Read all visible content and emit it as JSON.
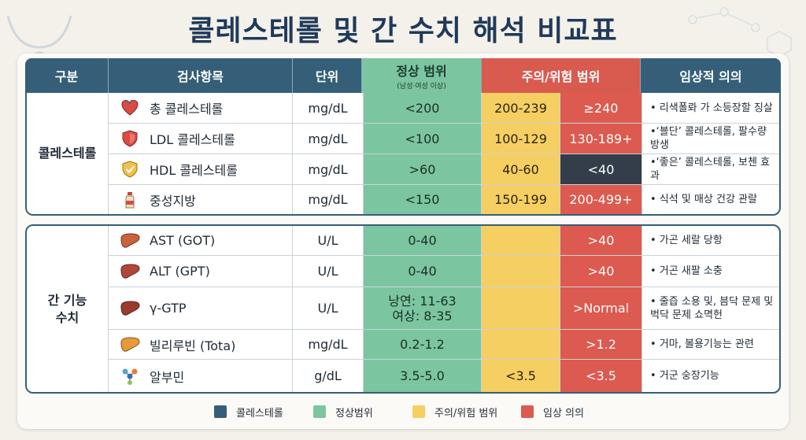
{
  "title": "콜레스테롤 및 간 수치 해석 비교표",
  "header": {
    "category": "구분",
    "item": "검사항목",
    "unit": "단위",
    "normal": "정상 범위",
    "normal_sub": "(남성·여성 이상)",
    "warning": "주의/위험 범위",
    "meaning": "임상적 의의"
  },
  "sections": [
    {
      "group": "콜레스테롤",
      "rows": [
        {
          "icon": "heart-icon",
          "name": "총 콜레스테롤",
          "unit": "mg/dL",
          "normal": "<200",
          "caution": "200-239",
          "danger": "≥240",
          "meaning": "• 리색폴롸 가 소등장할 징살"
        },
        {
          "icon": "shield-icon",
          "name": "LDL 콜레스테롤",
          "unit": "mg/dL",
          "normal": "<100",
          "caution": "100-129",
          "danger": "130-189+",
          "meaning": "•‘블단’ 콜레스테롤, 팔수량 방생"
        },
        {
          "icon": "shield-check-icon",
          "name": "HDL 콜레스테롤",
          "unit": "mg/dL",
          "normal": ">60",
          "caution": "40-60",
          "danger": "<40",
          "meaning": "•‘좋은’ 콜레스테롤, 보첸 효과"
        },
        {
          "icon": "bottle-icon",
          "name": "중성지방",
          "unit": "mg/dL",
          "normal": "<150",
          "caution": "150-199",
          "danger": "200-499+",
          "meaning": "• 식석 및 매상 건강 관랄"
        }
      ]
    },
    {
      "group_line1": "간 기능",
      "group_line2": "수치",
      "rows": [
        {
          "icon": "liver-icon",
          "name": "AST (GOT)",
          "unit": "U/L",
          "normal": "0-40",
          "caution": "",
          "danger": ">40",
          "meaning": "• 가곤 세랄 당항"
        },
        {
          "icon": "liver-icon",
          "name": "ALT (GPT)",
          "unit": "U/L",
          "normal": "0-40",
          "caution": "",
          "danger": ">40",
          "meaning": "• 거곤 새팔 소충"
        },
        {
          "icon": "liver-icon",
          "name": "γ-GTP",
          "unit": "U/L",
          "normal_line1": "낭연: 11-63",
          "normal_line2": "여상: 8-35",
          "caution": "",
          "danger": ">Normal",
          "meaning_line1": "• 줄즙 소용 및, 븜닥 문제 및",
          "meaning_line2": "벅닥 문제 쇼멱헌"
        },
        {
          "icon": "liver-icon",
          "name": "빌리루빈 (Tota)",
          "unit": "mg/dL",
          "normal": "0.2-1.2",
          "caution": "",
          "danger": ">1.2",
          "meaning": "• 거마, 볼용기능는 관련"
        },
        {
          "icon": "molecule-icon",
          "name": "알부민",
          "unit": "g/dL",
          "normal": "3.5-5.0",
          "caution": "<3.5",
          "danger": "<3.5",
          "meaning": "• 거군 숭장기능"
        }
      ]
    }
  ],
  "legend": [
    {
      "label": "콜레스테롤",
      "color": "#355f78"
    },
    {
      "label": "정상범위",
      "color": "#7cc5a1"
    },
    {
      "label": "주의/위험 범위",
      "color": "#f6cf62"
    },
    {
      "label": "임상  의의",
      "color": "#dc5a4f"
    }
  ]
}
